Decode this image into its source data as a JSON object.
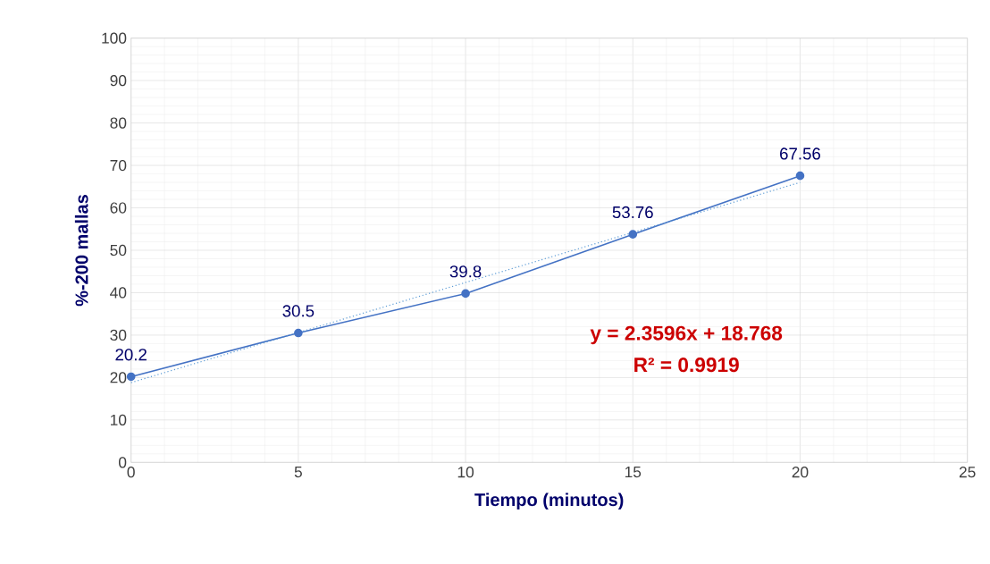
{
  "chart_data": {
    "type": "line",
    "xlabel": "Tiempo (minutos)",
    "ylabel": "%-200 mallas",
    "xlim": [
      0,
      25
    ],
    "xticks": [
      0,
      5,
      10,
      15,
      20,
      25
    ],
    "ylim": [
      0,
      100
    ],
    "yticks": [
      0,
      10,
      20,
      30,
      40,
      50,
      60,
      70,
      80,
      90,
      100
    ],
    "grid": true,
    "series": [
      {
        "x": [
          0,
          5,
          10,
          15,
          20
        ],
        "values": [
          20.2,
          30.5,
          39.8,
          53.76,
          67.56
        ],
        "color": "#4472c4",
        "marker": "circle",
        "line_style": "solid",
        "value_labels": [
          "20.2",
          "30.5",
          "39.8",
          "53.76",
          "67.56"
        ]
      },
      {
        "x": [
          0,
          20
        ],
        "values": [
          18.8,
          66
        ],
        "color": "#5b9bd5",
        "marker": "none",
        "line_style": "dotted"
      }
    ],
    "annotations": [
      "y = 2.3596x + 18.768",
      "R² = 0.9919"
    ]
  }
}
